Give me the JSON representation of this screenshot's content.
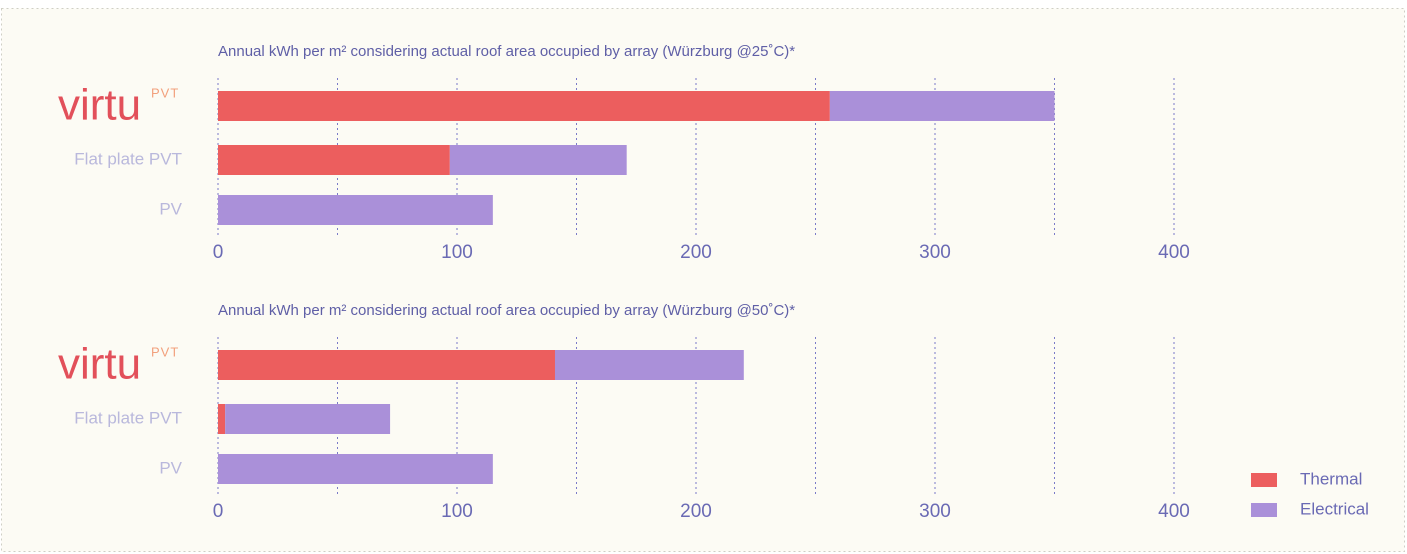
{
  "logo": {
    "name": "virtu",
    "mark": "PVT"
  },
  "chart_data": [
    {
      "type": "stacked-barh",
      "title": "Annual kWh per m² considering actual roof area occupied by array (Würzburg @25˚C)*",
      "categories": [
        null,
        "Flat plate PVT",
        "PV"
      ],
      "series": [
        {
          "color": "#ec5e5e",
          "values": [
            256,
            97,
            0
          ]
        },
        {
          "color": "#aa90d9",
          "values": [
            94,
            74,
            115
          ]
        }
      ],
      "xlim": [
        0,
        400
      ],
      "xticks": [
        0,
        100,
        200,
        300,
        400
      ],
      "xminorticks": [
        50,
        150,
        250,
        350
      ],
      "grid": true,
      "legend": false
    },
    {
      "type": "stacked-barh",
      "title": "Annual kWh per m² considering actual roof area occupied by array (Würzburg @50˚C)*",
      "categories": [
        null,
        "Flat plate PVT",
        "PV"
      ],
      "series": [
        {
          "name": "Thermal",
          "color": "#ec5e5e",
          "values": [
            141,
            3,
            0
          ]
        },
        {
          "name": "Electrical",
          "color": "#aa90d9",
          "values": [
            79,
            69,
            115
          ]
        }
      ],
      "xlim": [
        0,
        400
      ],
      "xticks": [
        0,
        100,
        200,
        300,
        400
      ],
      "xminorticks": [
        50,
        150,
        250,
        350
      ],
      "grid": true,
      "legend": "lower right"
    }
  ]
}
